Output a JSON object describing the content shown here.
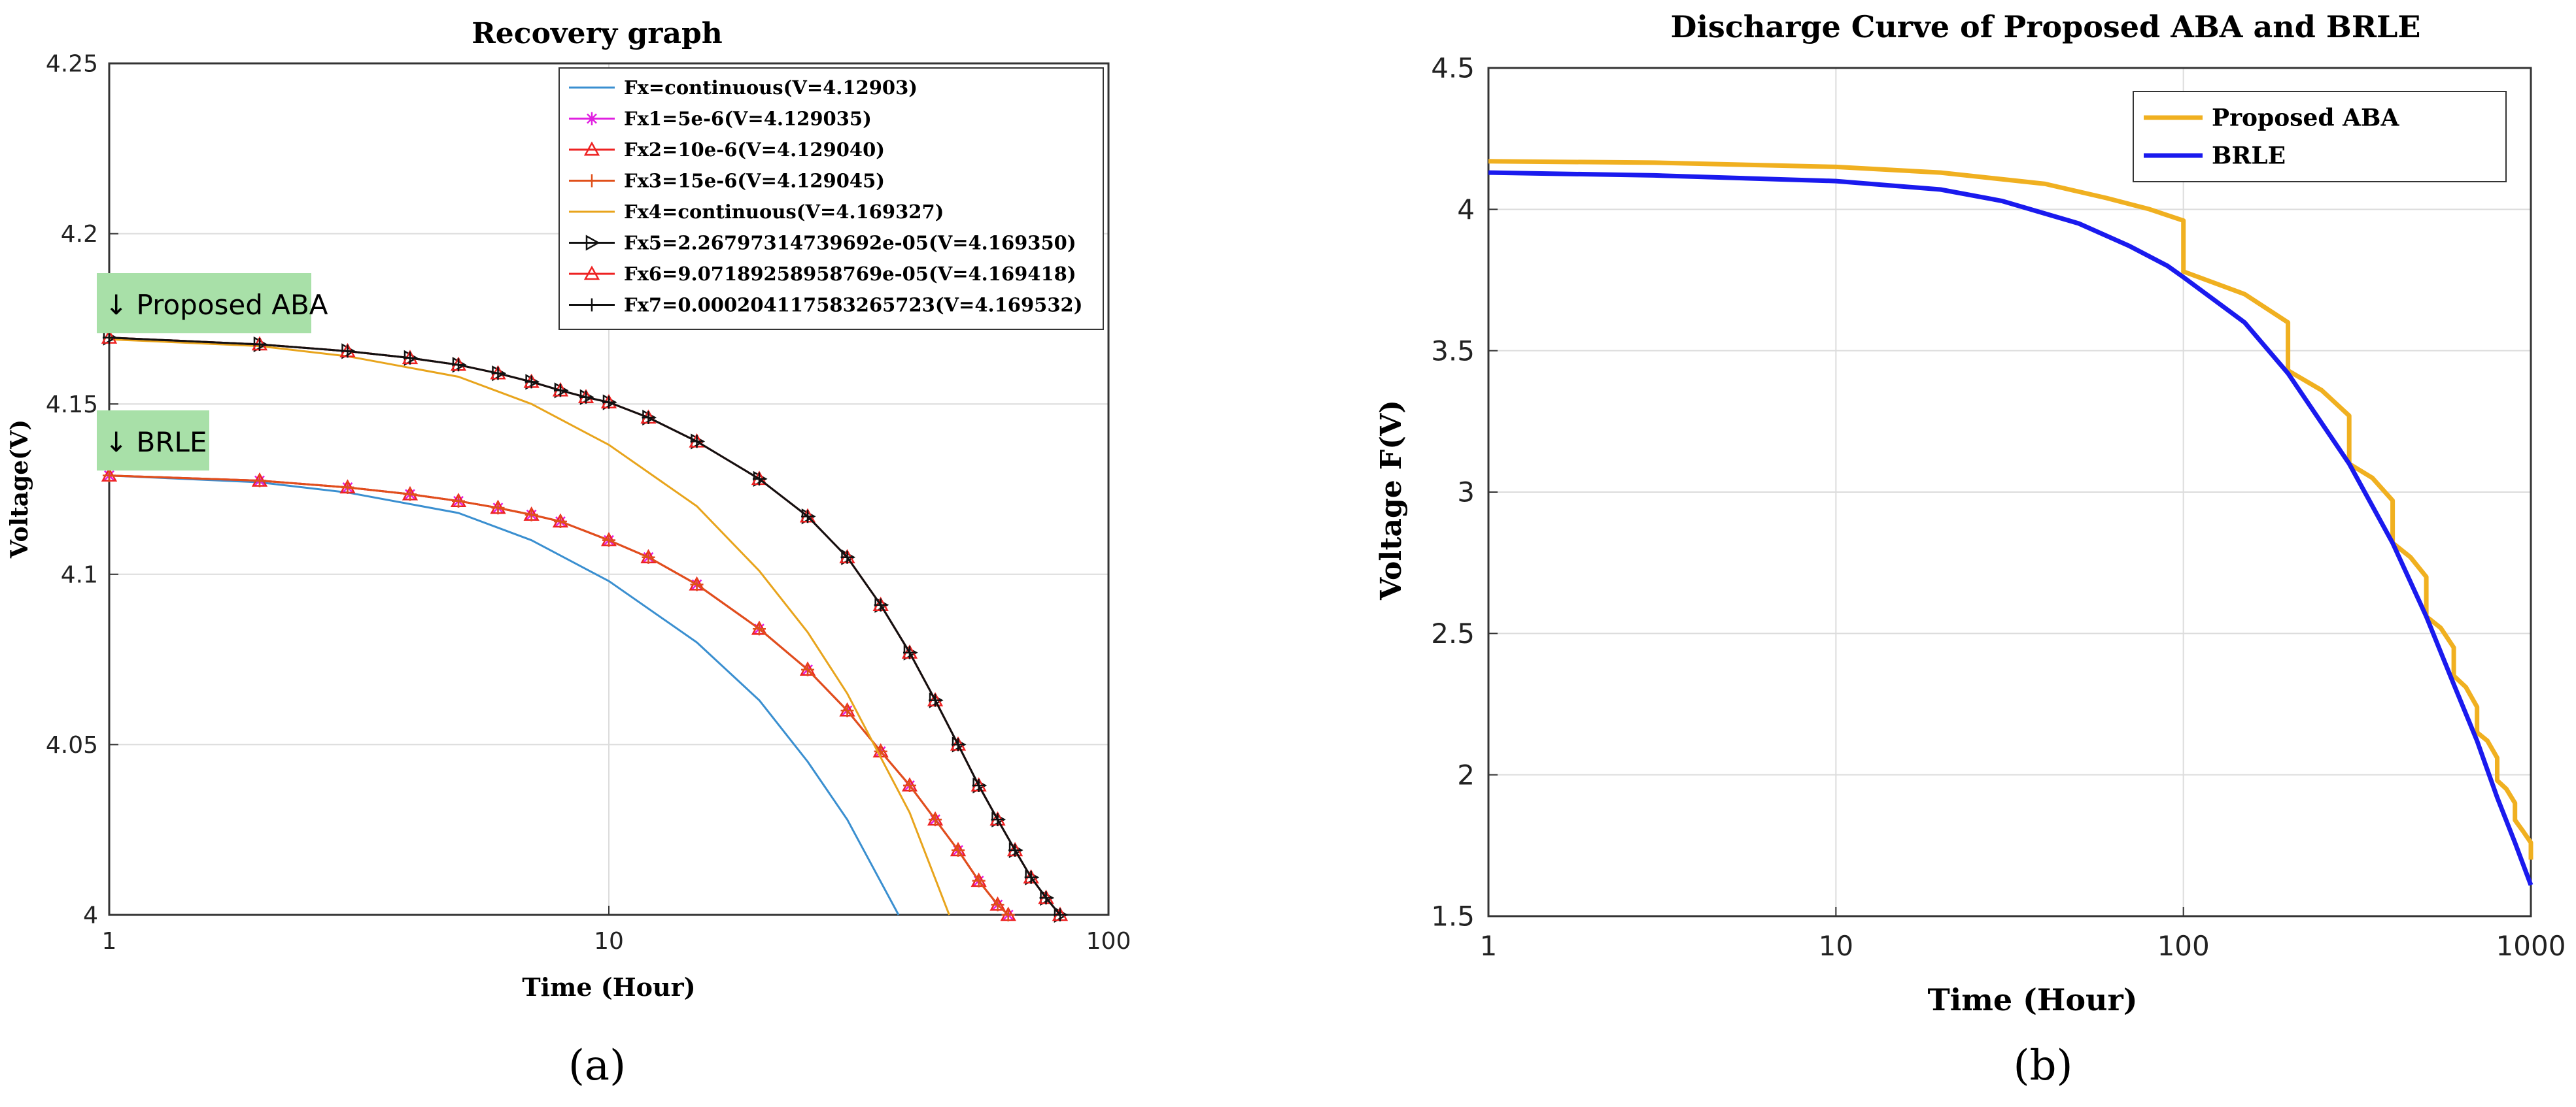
{
  "chart_data": [
    {
      "type": "line",
      "title": "Recovery graph",
      "xlabel": "Time (Hour)",
      "ylabel": "Voltage(V)",
      "xscale": "log",
      "xlim": [
        1,
        100
      ],
      "ylim": [
        4.0,
        4.25
      ],
      "xticks": [
        1,
        10,
        100
      ],
      "xtick_labels": [
        "1",
        "10",
        "100"
      ],
      "yticks": [
        4.0,
        4.05,
        4.1,
        4.15,
        4.2,
        4.25
      ],
      "ytick_labels": [
        "4",
        "4.05",
        "4.1",
        "4.15",
        "4.2",
        "4.25"
      ],
      "grid": true,
      "legend_position": "top-right",
      "subplot_label": "(a)",
      "annotations": [
        {
          "text": "↓ Proposed ABA",
          "bg": "#a8e0a8"
        },
        {
          "text": "↓ BRLE",
          "bg": "#a8e0a8"
        }
      ],
      "series": [
        {
          "name": "Fx=continuous(V=4.12903)",
          "color": "#3a8fd0",
          "marker": "none",
          "x": [
            1,
            2,
            3,
            5,
            7,
            10,
            15,
            20,
            25,
            30,
            38
          ],
          "y": [
            4.129,
            4.127,
            4.124,
            4.118,
            4.11,
            4.098,
            4.08,
            4.063,
            4.045,
            4.028,
            4.0
          ]
        },
        {
          "name": "Fx1=5e-6(V=4.129035)",
          "color": "#e020e0",
          "marker": "star",
          "x": [
            1,
            2,
            3,
            4,
            5,
            6,
            7,
            8,
            10,
            12,
            15,
            20,
            25,
            30,
            35,
            40,
            45,
            50,
            55,
            60,
            63
          ],
          "y": [
            4.129,
            4.1275,
            4.1255,
            4.1235,
            4.1215,
            4.1195,
            4.1175,
            4.1155,
            4.11,
            4.105,
            4.097,
            4.084,
            4.072,
            4.06,
            4.048,
            4.038,
            4.028,
            4.019,
            4.01,
            4.003,
            4.0
          ]
        },
        {
          "name": "Fx2=10e-6(V=4.129040)",
          "color": "#ee2222",
          "marker": "triangle",
          "x": [
            1,
            2,
            3,
            4,
            5,
            6,
            7,
            8,
            10,
            12,
            15,
            20,
            25,
            30,
            35,
            40,
            45,
            50,
            55,
            60,
            63
          ],
          "y": [
            4.129,
            4.1275,
            4.1255,
            4.1235,
            4.1215,
            4.1195,
            4.1175,
            4.1155,
            4.11,
            4.105,
            4.097,
            4.084,
            4.072,
            4.06,
            4.048,
            4.038,
            4.028,
            4.019,
            4.01,
            4.003,
            4.0
          ]
        },
        {
          "name": "Fx3=15e-6(V=4.129045)",
          "color": "#e0501a",
          "marker": "plus",
          "x": [
            1,
            2,
            3,
            4,
            5,
            6,
            7,
            8,
            10,
            12,
            15,
            20,
            25,
            30,
            35,
            40,
            45,
            50,
            55,
            60,
            63
          ],
          "y": [
            4.129,
            4.1275,
            4.1255,
            4.1235,
            4.1215,
            4.1195,
            4.1175,
            4.1155,
            4.11,
            4.105,
            4.097,
            4.084,
            4.072,
            4.06,
            4.048,
            4.038,
            4.028,
            4.019,
            4.01,
            4.003,
            4.0
          ]
        },
        {
          "name": "Fx4=continuous(V=4.169327)",
          "color": "#e8a41c",
          "marker": "none",
          "x": [
            1,
            2,
            3,
            5,
            7,
            10,
            15,
            20,
            25,
            30,
            40,
            48
          ],
          "y": [
            4.169,
            4.167,
            4.164,
            4.158,
            4.15,
            4.138,
            4.12,
            4.101,
            4.083,
            4.065,
            4.03,
            4.0
          ]
        },
        {
          "name": "Fx5=2.26797314739692e-05(V=4.169350)",
          "color": "#111111",
          "marker": "triangle-right",
          "x": [
            1,
            2,
            3,
            4,
            5,
            6,
            7,
            8,
            9,
            10,
            12,
            15,
            20,
            25,
            30,
            35,
            40,
            45,
            50,
            55,
            60,
            65,
            70,
            75,
            80
          ],
          "y": [
            4.1695,
            4.1675,
            4.1655,
            4.1635,
            4.1615,
            4.159,
            4.1565,
            4.154,
            4.152,
            4.1505,
            4.146,
            4.139,
            4.128,
            4.117,
            4.105,
            4.091,
            4.077,
            4.063,
            4.05,
            4.038,
            4.028,
            4.019,
            4.011,
            4.005,
            4.0
          ]
        },
        {
          "name": "Fx6=9.07189258958769e-05(V=4.169418)",
          "color": "#ee2222",
          "marker": "triangle",
          "x": [
            1,
            2,
            3,
            4,
            5,
            6,
            7,
            8,
            9,
            10,
            12,
            15,
            20,
            25,
            30,
            35,
            40,
            45,
            50,
            55,
            60,
            65,
            70,
            75,
            80
          ],
          "y": [
            4.1695,
            4.1675,
            4.1655,
            4.1635,
            4.1615,
            4.159,
            4.1565,
            4.154,
            4.152,
            4.1505,
            4.146,
            4.139,
            4.128,
            4.117,
            4.105,
            4.091,
            4.077,
            4.063,
            4.05,
            4.038,
            4.028,
            4.019,
            4.011,
            4.005,
            4.0
          ]
        },
        {
          "name": "Fx7=0.000204117583265723(V=4.169532)",
          "color": "#111111",
          "marker": "plus",
          "x": [
            1,
            2,
            3,
            4,
            5,
            6,
            7,
            8,
            9,
            10,
            12,
            15,
            20,
            25,
            30,
            35,
            40,
            45,
            50,
            55,
            60,
            65,
            70,
            75,
            80
          ],
          "y": [
            4.1695,
            4.1675,
            4.1655,
            4.1635,
            4.1615,
            4.159,
            4.1565,
            4.154,
            4.152,
            4.1505,
            4.146,
            4.139,
            4.128,
            4.117,
            4.105,
            4.091,
            4.077,
            4.063,
            4.05,
            4.038,
            4.028,
            4.019,
            4.011,
            4.005,
            4.0
          ]
        }
      ]
    },
    {
      "type": "line",
      "title": "Discharge Curve of Proposed ABA and BRLE",
      "xlabel": "Time (Hour)",
      "ylabel": "Voltage F(V)",
      "xscale": "log",
      "xlim": [
        1,
        1000
      ],
      "ylim": [
        1.5,
        4.5
      ],
      "xticks": [
        1,
        10,
        100,
        1000
      ],
      "xtick_labels": [
        "1",
        "10",
        "100",
        "1000"
      ],
      "yticks": [
        1.5,
        2,
        2.5,
        3,
        3.5,
        4,
        4.5
      ],
      "ytick_labels": [
        "1.5",
        "2",
        "2.5",
        "3",
        "3.5",
        "4",
        "4.5"
      ],
      "grid": true,
      "legend_position": "top-right",
      "subplot_label": "(b)",
      "series": [
        {
          "name": "Proposed ABA",
          "color": "#f0b020",
          "marker": "none",
          "x": [
            1,
            3,
            10,
            20,
            40,
            60,
            80,
            100,
            100,
            150,
            200,
            200,
            250,
            300,
            300,
            350,
            400,
            400,
            450,
            500,
            500,
            550,
            600,
            600,
            650,
            700,
            700,
            750,
            800,
            800,
            850,
            900,
            900,
            950,
            1000,
            1000
          ],
          "y": [
            4.17,
            4.165,
            4.15,
            4.13,
            4.09,
            4.04,
            4.0,
            3.96,
            3.78,
            3.7,
            3.6,
            3.43,
            3.36,
            3.27,
            3.1,
            3.05,
            2.97,
            2.82,
            2.77,
            2.7,
            2.56,
            2.52,
            2.45,
            2.35,
            2.31,
            2.24,
            2.15,
            2.12,
            2.06,
            1.98,
            1.95,
            1.9,
            1.84,
            1.8,
            1.76,
            1.7
          ]
        },
        {
          "name": "BRLE",
          "color": "#1a1aee",
          "marker": "none",
          "x": [
            1,
            3,
            10,
            20,
            30,
            50,
            70,
            90,
            100,
            150,
            200,
            300,
            400,
            500,
            600,
            700,
            800,
            900,
            1000
          ],
          "y": [
            4.13,
            4.12,
            4.1,
            4.07,
            4.03,
            3.95,
            3.87,
            3.8,
            3.76,
            3.6,
            3.42,
            3.1,
            2.82,
            2.56,
            2.32,
            2.12,
            1.92,
            1.76,
            1.61
          ]
        }
      ]
    }
  ]
}
